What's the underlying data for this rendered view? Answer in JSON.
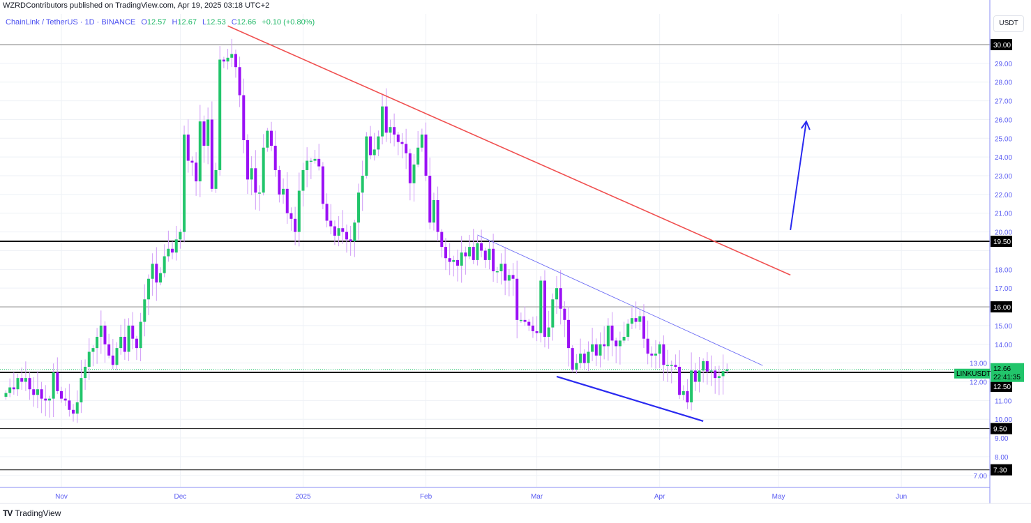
{
  "header": {
    "publisher": "WZRDContributors published on TradingView.com, Apr 19, 2025 03:18 UTC+2",
    "symbol": "ChainLink / TetherUS · 1D · BINANCE",
    "open_label": "O",
    "open": "12.57",
    "high_label": "H",
    "high": "12.67",
    "low_label": "L",
    "low": "12.53",
    "close_label": "C",
    "close": "12.66",
    "change": "+0.10 (+0.80%)"
  },
  "price_axis": {
    "currency": "USDT",
    "ticks": [
      "7.00",
      "8.00",
      "9.00",
      "10.00",
      "11.00",
      "12.00",
      "13.00",
      "14.00",
      "15.00",
      "17.00",
      "18.00",
      "20.00",
      "21.00",
      "22.00",
      "23.00",
      "24.00",
      "25.00",
      "26.00",
      "27.00",
      "28.00",
      "29.00"
    ],
    "level_labels": [
      "30.00",
      "19.50",
      "16.00",
      "12.50",
      "9.50",
      "7.30"
    ],
    "last_price": {
      "symbol": "LINKUSDT",
      "price": "12.66",
      "countdown": "22:41:35"
    }
  },
  "time_axis": {
    "ticks": [
      {
        "label": "Nov",
        "date": "2024-11-01"
      },
      {
        "label": "Dec",
        "date": "2024-12-01"
      },
      {
        "label": "2025",
        "date": "2025-01-01"
      },
      {
        "label": "Feb",
        "date": "2025-02-01"
      },
      {
        "label": "Mar",
        "date": "2025-03-01"
      },
      {
        "label": "Apr",
        "date": "2025-04-01"
      },
      {
        "label": "May",
        "date": "2025-05-01"
      },
      {
        "label": "Jun",
        "date": "2025-06-01"
      }
    ]
  },
  "footer": {
    "brand": "TradingView",
    "logo_text": "TV"
  },
  "colors": {
    "up": "#22c56b",
    "down": "#9a10f5",
    "wick": "#cf9af7",
    "axis": "#5a5cf2",
    "resistance_line": "#f05050",
    "channel_line": "#2a2af0"
  },
  "chart_data": {
    "type": "candlestick",
    "interval": "1D",
    "first_date": "2024-10-18",
    "ylim": [
      6.8,
      31.5
    ],
    "grid": true,
    "closes": [
      11.4,
      11.7,
      11.6,
      12.2,
      12.0,
      12.2,
      11.6,
      11.3,
      11.6,
      11.1,
      11.0,
      11.1,
      12.5,
      11.5,
      11.1,
      11.0,
      10.5,
      10.3,
      10.9,
      12.2,
      12.8,
      13.6,
      13.8,
      14.4,
      15.0,
      14.0,
      13.4,
      12.9,
      13.8,
      14.4,
      13.6,
      15.0,
      14.3,
      13.8,
      15.2,
      16.4,
      17.5,
      18.3,
      17.3,
      17.8,
      18.7,
      19.1,
      18.9,
      19.6,
      20.0,
      25.2,
      23.8,
      23.7,
      22.7,
      25.9,
      24.6,
      26.0,
      22.3,
      23.3,
      29.2,
      29.1,
      29.3,
      29.5,
      28.8,
      27.3,
      24.9,
      22.8,
      23.4,
      22.1,
      22.1,
      24.5,
      25.4,
      24.6,
      23.3,
      22.0,
      22.3,
      21.0,
      20.7,
      20.0,
      22.2,
      23.3,
      23.8,
      23.8,
      23.9,
      23.5,
      21.5,
      20.6,
      20.3,
      19.8,
      20.2,
      20.0,
      19.6,
      19.5,
      20.5,
      22.1,
      23.0,
      25.1,
      24.1,
      24.4,
      25.1,
      26.7,
      25.3,
      25.6,
      25.2,
      24.8,
      24.7,
      24.2,
      22.6,
      23.6,
      24.5,
      25.2,
      23.0,
      20.5,
      21.7,
      20.0,
      19.2,
      18.6,
      18.4,
      18.5,
      18.2,
      18.9,
      18.7,
      19.2,
      18.5,
      19.4,
      19.0,
      18.5,
      19.1,
      17.9,
      17.9,
      18.3,
      17.4,
      17.7,
      17.5,
      15.3,
      15.3,
      15.2,
      15.0,
      14.7,
      14.6,
      17.4,
      14.4,
      14.9,
      16.4,
      17.0,
      15.9,
      15.3,
      13.8,
      12.65,
      13.0,
      13.5,
      13.0,
      13.6,
      14.0,
      13.4,
      14.0,
      13.9,
      15.0,
      14.2,
      13.9,
      14.2,
      14.4,
      15.1,
      15.4,
      15.2,
      15.5,
      14.3,
      13.5,
      13.4,
      13.5,
      14.0,
      12.9,
      12.9,
      12.9,
      12.8,
      11.3,
      11.5,
      10.9,
      12.6,
      12.0,
      12.6,
      13.1,
      12.55,
      12.6,
      12.2,
      12.3,
      12.57,
      12.66
    ],
    "horizontal_levels": [
      {
        "price": 30.0,
        "style": "gray"
      },
      {
        "price": 19.5,
        "style": "black-thick"
      },
      {
        "price": 16.0,
        "style": "gray"
      },
      {
        "price": 12.5,
        "style": "black-thick"
      },
      {
        "price": 9.5,
        "style": "black"
      },
      {
        "price": 7.3,
        "style": "black"
      }
    ],
    "trendlines": [
      {
        "name": "descending-resistance",
        "from": [
          "2024-12-13",
          31.0
        ],
        "to": [
          "2025-05-04",
          17.7
        ],
        "color": "#f05050",
        "width": 1.6
      },
      {
        "name": "channel-upper",
        "from": [
          "2025-02-14",
          19.84
        ],
        "to": [
          "2025-04-27",
          12.87
        ],
        "color": "#6b6bf5",
        "width": 0.9
      },
      {
        "name": "channel-lower",
        "from": [
          "2025-03-06",
          12.28
        ],
        "to": [
          "2025-04-12",
          9.9
        ],
        "color": "#2a2af0",
        "width": 2.2
      }
    ],
    "arrow": {
      "from": [
        "2025-05-04",
        20.1
      ],
      "to": [
        "2025-05-08",
        25.9
      ],
      "color": "#2a2af0"
    }
  }
}
